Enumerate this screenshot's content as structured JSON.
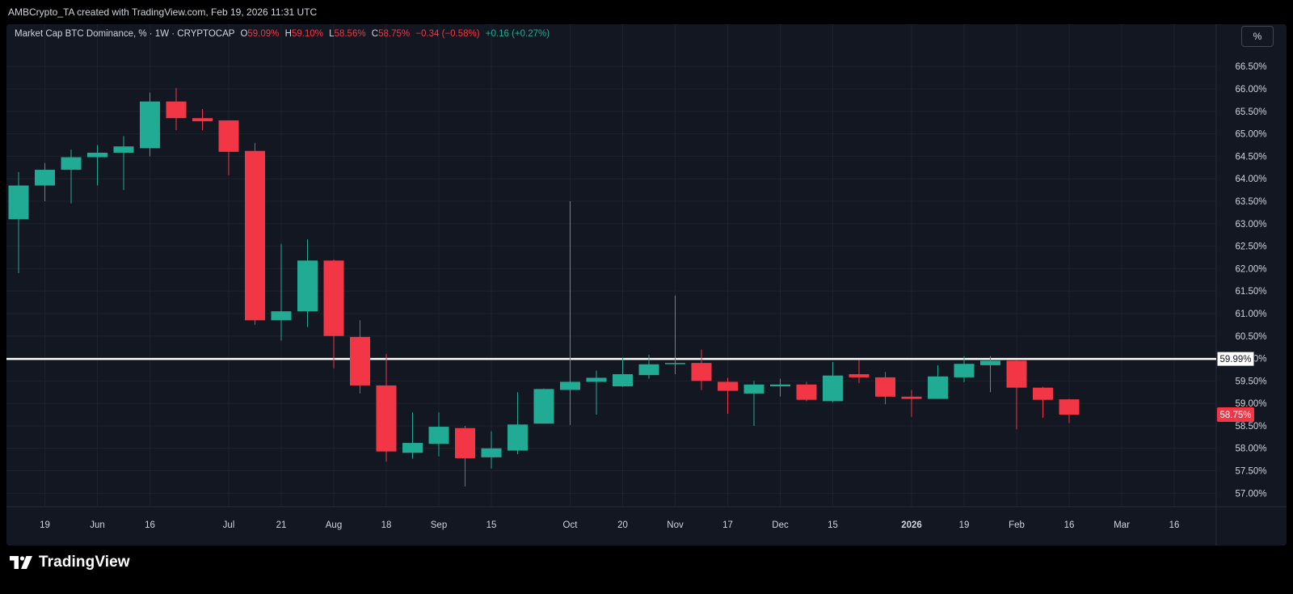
{
  "header": {
    "attribution": "AMBCrypto_TA created with TradingView.com, Feb 19, 2026 11:31 UTC"
  },
  "legend": {
    "symbol": "Market Cap BTC Dominance, % · 1W · CRYPTOCAP",
    "o_label": "O",
    "o_value": "59.09%",
    "h_label": "H",
    "h_value": "59.10%",
    "l_label": "L",
    "l_value": "58.56%",
    "c_label": "C",
    "c_value": "58.75%",
    "change": "−0.34 (−0.58%)",
    "volume_change": "+0.16 (+0.27%)"
  },
  "controls": {
    "scale_button": "%"
  },
  "footer": {
    "brand": "TradingView"
  },
  "colors": {
    "up": "#22ab94",
    "down": "#f23645",
    "background": "#131722",
    "grid": "#1e222d",
    "axis_text": "#d1d4dc",
    "level_line": "#ffffff"
  },
  "chart_data": {
    "type": "candlestick",
    "interval": "1W",
    "y_unit": "%",
    "ylim": [
      56.7,
      66.9
    ],
    "y_ticks": [
      "57.00%",
      "57.50%",
      "58.00%",
      "58.50%",
      "59.00%",
      "59.50%",
      "60.00%",
      "60.50%",
      "61.00%",
      "61.50%",
      "62.00%",
      "62.50%",
      "63.00%",
      "63.50%",
      "64.00%",
      "64.50%",
      "65.00%",
      "65.50%",
      "66.00%",
      "66.50%"
    ],
    "x_labels": [
      {
        "label": "19",
        "index": 1
      },
      {
        "label": "Jun",
        "index": 3
      },
      {
        "label": "16",
        "index": 5
      },
      {
        "label": "Jul",
        "index": 8
      },
      {
        "label": "21",
        "index": 10
      },
      {
        "label": "Aug",
        "index": 12
      },
      {
        "label": "18",
        "index": 14
      },
      {
        "label": "Sep",
        "index": 16
      },
      {
        "label": "15",
        "index": 18
      },
      {
        "label": "Oct",
        "index": 21
      },
      {
        "label": "20",
        "index": 23
      },
      {
        "label": "Nov",
        "index": 25
      },
      {
        "label": "17",
        "index": 27
      },
      {
        "label": "Dec",
        "index": 29
      },
      {
        "label": "15",
        "index": 31
      },
      {
        "label": "2026",
        "index": 34
      },
      {
        "label": "19",
        "index": 36
      },
      {
        "label": "Feb",
        "index": 38
      },
      {
        "label": "16",
        "index": 40
      },
      {
        "label": "Mar",
        "index": 42
      },
      {
        "label": "16",
        "index": 44
      }
    ],
    "candles": [
      {
        "o": 63.1,
        "h": 64.15,
        "l": 61.9,
        "c": 63.85
      },
      {
        "o": 63.85,
        "h": 64.35,
        "l": 63.5,
        "c": 64.2
      },
      {
        "o": 64.2,
        "h": 64.65,
        "l": 63.45,
        "c": 64.48
      },
      {
        "o": 64.48,
        "h": 64.75,
        "l": 63.85,
        "c": 64.58
      },
      {
        "o": 64.58,
        "h": 64.95,
        "l": 63.75,
        "c": 64.72
      },
      {
        "o": 64.68,
        "h": 65.92,
        "l": 64.5,
        "c": 65.72
      },
      {
        "o": 65.72,
        "h": 66.02,
        "l": 65.08,
        "c": 65.35
      },
      {
        "o": 65.35,
        "h": 65.55,
        "l": 65.08,
        "c": 65.28
      },
      {
        "o": 65.3,
        "h": 65.3,
        "l": 64.08,
        "c": 64.6
      },
      {
        "o": 64.62,
        "h": 64.8,
        "l": 60.75,
        "c": 60.85
      },
      {
        "o": 60.85,
        "h": 62.55,
        "l": 60.4,
        "c": 61.05
      },
      {
        "o": 61.05,
        "h": 62.65,
        "l": 60.7,
        "c": 62.18
      },
      {
        "o": 62.18,
        "h": 62.2,
        "l": 59.78,
        "c": 60.5
      },
      {
        "o": 60.48,
        "h": 60.85,
        "l": 59.22,
        "c": 59.4
      },
      {
        "o": 59.4,
        "h": 60.1,
        "l": 57.7,
        "c": 57.93
      },
      {
        "o": 57.9,
        "h": 58.8,
        "l": 57.77,
        "c": 58.12
      },
      {
        "o": 58.1,
        "h": 58.8,
        "l": 57.82,
        "c": 58.48
      },
      {
        "o": 58.45,
        "h": 58.5,
        "l": 57.15,
        "c": 57.78
      },
      {
        "o": 57.8,
        "h": 58.38,
        "l": 57.55,
        "c": 58.0
      },
      {
        "o": 57.95,
        "h": 59.25,
        "l": 57.87,
        "c": 58.53
      },
      {
        "o": 58.55,
        "h": 59.33,
        "l": 58.55,
        "c": 59.32
      },
      {
        "o": 59.3,
        "h": 63.5,
        "l": 58.52,
        "c": 59.48
      },
      {
        "o": 59.48,
        "h": 59.73,
        "l": 58.75,
        "c": 59.57
      },
      {
        "o": 59.38,
        "h": 60.02,
        "l": 59.37,
        "c": 59.65
      },
      {
        "o": 59.63,
        "h": 60.08,
        "l": 59.55,
        "c": 59.87
      },
      {
        "o": 59.88,
        "h": 61.4,
        "l": 59.65,
        "c": 59.9
      },
      {
        "o": 59.9,
        "h": 60.2,
        "l": 59.3,
        "c": 59.5
      },
      {
        "o": 59.48,
        "h": 59.57,
        "l": 58.77,
        "c": 59.28
      },
      {
        "o": 59.22,
        "h": 59.5,
        "l": 58.5,
        "c": 59.42
      },
      {
        "o": 59.38,
        "h": 59.55,
        "l": 59.15,
        "c": 59.42
      },
      {
        "o": 59.42,
        "h": 59.48,
        "l": 59.05,
        "c": 59.08
      },
      {
        "o": 59.05,
        "h": 59.92,
        "l": 59.03,
        "c": 59.62
      },
      {
        "o": 59.65,
        "h": 59.97,
        "l": 59.45,
        "c": 59.58
      },
      {
        "o": 59.58,
        "h": 59.7,
        "l": 58.98,
        "c": 59.15
      },
      {
        "o": 59.15,
        "h": 59.3,
        "l": 58.7,
        "c": 59.1
      },
      {
        "o": 59.1,
        "h": 59.85,
        "l": 59.1,
        "c": 59.6
      },
      {
        "o": 59.58,
        "h": 60.05,
        "l": 59.47,
        "c": 59.88
      },
      {
        "o": 59.85,
        "h": 60.05,
        "l": 59.25,
        "c": 59.95
      },
      {
        "o": 59.95,
        "h": 59.97,
        "l": 58.42,
        "c": 59.35
      },
      {
        "o": 59.35,
        "h": 59.37,
        "l": 58.68,
        "c": 59.08
      },
      {
        "o": 59.09,
        "h": 59.1,
        "l": 58.56,
        "c": 58.75
      }
    ],
    "level_line": {
      "value": 59.99,
      "label": "59.99%"
    },
    "last_price": {
      "value": 58.75,
      "label": "58.75%"
    }
  }
}
